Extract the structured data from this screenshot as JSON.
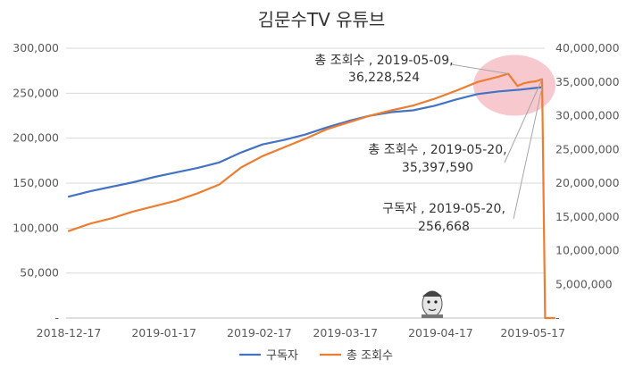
{
  "chart_data": {
    "type": "line",
    "title": "김문수TV 유튜브",
    "x": {
      "start_date": "2018-12-17",
      "end_date": "2019-05-20",
      "tick_labels": [
        "2018-12-17",
        "2019-01-17",
        "2019-02-17",
        "2019-03-17",
        "2019-04-17",
        "2019-05-17"
      ]
    },
    "y_left": {
      "range": [
        0,
        300000
      ],
      "tick_labels": [
        "-",
        "50,000",
        "100,000",
        "150,000",
        "200,000",
        "250,000",
        "300,000"
      ]
    },
    "y_right": {
      "range": [
        0,
        40000000
      ],
      "tick_labels": [
        "-",
        "5,000,000",
        "10,000,000",
        "15,000,000",
        "20,000,000",
        "25,000,000",
        "30,000,000",
        "35,000,000",
        "40,000,000"
      ]
    },
    "grid": true,
    "legend_position": "bottom",
    "series": [
      {
        "name": "구독자",
        "axis": "left",
        "color": "#4472c4",
        "points": [
          [
            "2018-12-17",
            135000
          ],
          [
            "2018-12-24",
            141000
          ],
          [
            "2018-12-31",
            146000
          ],
          [
            "2019-01-07",
            151000
          ],
          [
            "2019-01-14",
            157000
          ],
          [
            "2019-01-21",
            162000
          ],
          [
            "2019-01-28",
            167000
          ],
          [
            "2019-02-04",
            173000
          ],
          [
            "2019-02-11",
            184000
          ],
          [
            "2019-02-18",
            193000
          ],
          [
            "2019-02-25",
            198000
          ],
          [
            "2019-03-04",
            204000
          ],
          [
            "2019-03-11",
            212000
          ],
          [
            "2019-03-18",
            219000
          ],
          [
            "2019-03-25",
            225000
          ],
          [
            "2019-04-01",
            229000
          ],
          [
            "2019-04-08",
            231000
          ],
          [
            "2019-04-15",
            236000
          ],
          [
            "2019-04-22",
            243000
          ],
          [
            "2019-04-29",
            249000
          ],
          [
            "2019-05-06",
            252000
          ],
          [
            "2019-05-13",
            254000
          ],
          [
            "2019-05-20",
            256668
          ]
        ]
      },
      {
        "name": "총 조회수",
        "axis": "right",
        "color": "#ed7d31",
        "points": [
          [
            "2018-12-17",
            12900000
          ],
          [
            "2018-12-24",
            14000000
          ],
          [
            "2018-12-31",
            14800000
          ],
          [
            "2019-01-07",
            15800000
          ],
          [
            "2019-01-14",
            16600000
          ],
          [
            "2019-01-21",
            17400000
          ],
          [
            "2019-01-28",
            18500000
          ],
          [
            "2019-02-04",
            19800000
          ],
          [
            "2019-02-11",
            22300000
          ],
          [
            "2019-02-18",
            24000000
          ],
          [
            "2019-02-25",
            25300000
          ],
          [
            "2019-03-04",
            26600000
          ],
          [
            "2019-03-11",
            28000000
          ],
          [
            "2019-03-18",
            29000000
          ],
          [
            "2019-03-25",
            30000000
          ],
          [
            "2019-04-01",
            30800000
          ],
          [
            "2019-04-08",
            31500000
          ],
          [
            "2019-04-15",
            32500000
          ],
          [
            "2019-04-22",
            33700000
          ],
          [
            "2019-04-29",
            35000000
          ],
          [
            "2019-05-06",
            35800000
          ],
          [
            "2019-05-09",
            36228524
          ],
          [
            "2019-05-10",
            35600000
          ],
          [
            "2019-05-12",
            34400000
          ],
          [
            "2019-05-14",
            34800000
          ],
          [
            "2019-05-16",
            35000000
          ],
          [
            "2019-05-18",
            35100000
          ],
          [
            "2019-05-20",
            35397590
          ],
          [
            "2019-05-21",
            0
          ],
          [
            "2019-05-24",
            0
          ]
        ]
      }
    ],
    "annotations": [
      {
        "line1": "총 조회수 , 2019-05-09,",
        "line2": "36,228,524",
        "date": "2019-05-09",
        "value": 36228524,
        "axis": "right"
      },
      {
        "line1": "총 조회수 , 2019-05-20,",
        "line2": "35,397,590",
        "date": "2019-05-20",
        "value": 35397590,
        "axis": "right"
      },
      {
        "line1": "구독자 , 2019-05-20,",
        "line2": "256,668",
        "date": "2019-05-20",
        "value": 256668,
        "axis": "left"
      }
    ],
    "highlight": {
      "color": "#f4b6bd",
      "center_date": "2019-05-11",
      "center_value": 34500000
    }
  },
  "icons": {
    "watermark": "person-caricature-icon"
  }
}
